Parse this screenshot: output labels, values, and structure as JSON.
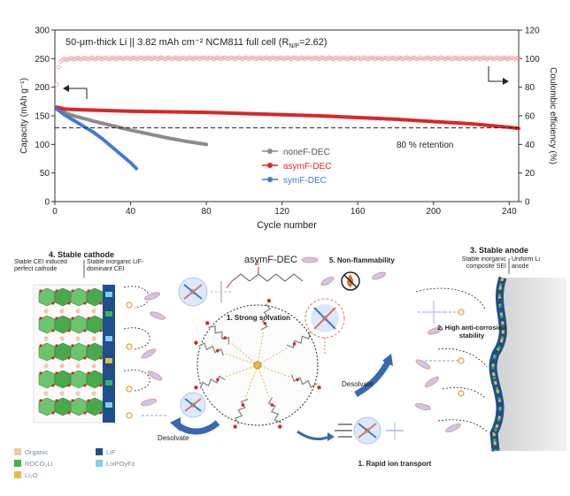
{
  "chart_data": {
    "type": "line",
    "title": "50-μm-thick Li || 3.82 mAh cm⁻² NCM811 full cell (R",
    "title_sub": "N/P",
    "title_tail": "=2.62)",
    "xlabel": "Cycle number",
    "ylabel_left": "Capacity (mAh g⁻¹)",
    "ylabel_right": "Coulombic efficiency (%)",
    "xlim": [
      0,
      245
    ],
    "ylim_left": [
      0,
      300
    ],
    "ylim_right": [
      0,
      120
    ],
    "x_ticks": [
      0,
      40,
      80,
      120,
      160,
      200,
      240
    ],
    "y_left_ticks": [
      0,
      50,
      100,
      150,
      200,
      250,
      300
    ],
    "y_right_ticks": [
      0,
      20,
      40,
      60,
      80,
      100,
      120
    ],
    "grid": false,
    "legend_position": "lower-center",
    "retention_label": "80 % retention",
    "retention_value": 129,
    "series": [
      {
        "name": "noneF-DEC",
        "color": "#8c8c8c",
        "x": [
          1,
          5,
          10,
          20,
          30,
          40,
          50,
          60,
          70,
          80
        ],
        "y": [
          162,
          156,
          150,
          141,
          133,
          125,
          118,
          111,
          105,
          100
        ]
      },
      {
        "name": "asymF-DEC",
        "color": "#d62828",
        "x": [
          1,
          5,
          10,
          20,
          40,
          60,
          80,
          100,
          120,
          140,
          160,
          180,
          200,
          220,
          240,
          245
        ],
        "y": [
          165,
          162,
          161,
          160,
          158,
          157,
          156,
          154,
          152,
          150,
          147,
          144,
          140,
          136,
          130,
          128
        ]
      },
      {
        "name": "symF-DEC",
        "color": "#3a7bd5",
        "x": [
          1,
          5,
          10,
          15,
          20,
          25,
          30,
          35,
          40,
          43
        ],
        "y": [
          162,
          152,
          142,
          132,
          122,
          110,
          96,
          82,
          68,
          58
        ]
      }
    ],
    "ce_series": {
      "name": "CE",
      "color": "#e89898",
      "x": [
        1,
        2,
        3,
        5,
        10,
        40,
        80,
        120,
        160,
        200,
        245
      ],
      "y": [
        82,
        94,
        98,
        99.5,
        100,
        100.2,
        100.3,
        100.3,
        100.2,
        100.2,
        100.2
      ]
    }
  },
  "schematic": {
    "cathode_title": "4. Stable cathode",
    "cathode_left_caption": "Stable CEI induced perfect cathode",
    "cathode_right_caption": "Stable inorganic LiF-dominant CEI",
    "solvent_label": "asymF-DEC",
    "nonflammability_label": "5. Non-flammability",
    "solvation_label": "1. Strong solvation",
    "anode_title": "3. Stable anode",
    "anode_left_caption": "Stable inorganic composite SEI",
    "anode_right_caption": "Uniform Li anode",
    "anticorrosion_label": "2. High anti-corrosion stability",
    "desolvate_upper": "Desolvate",
    "desolvate_lower": "Desolvate",
    "transport_label": "1. Rapid ion transport",
    "legend": [
      {
        "label": "Organic",
        "color": "#f2c9a8"
      },
      {
        "label": "LiF",
        "color": "#1f4e8c"
      },
      {
        "label": "ROCO₂Li",
        "color": "#3db34a"
      },
      {
        "label": "LixPOyFz",
        "color": "#7fd3e8"
      },
      {
        "label": "Li₂O",
        "color": "#e8b84a"
      }
    ]
  }
}
